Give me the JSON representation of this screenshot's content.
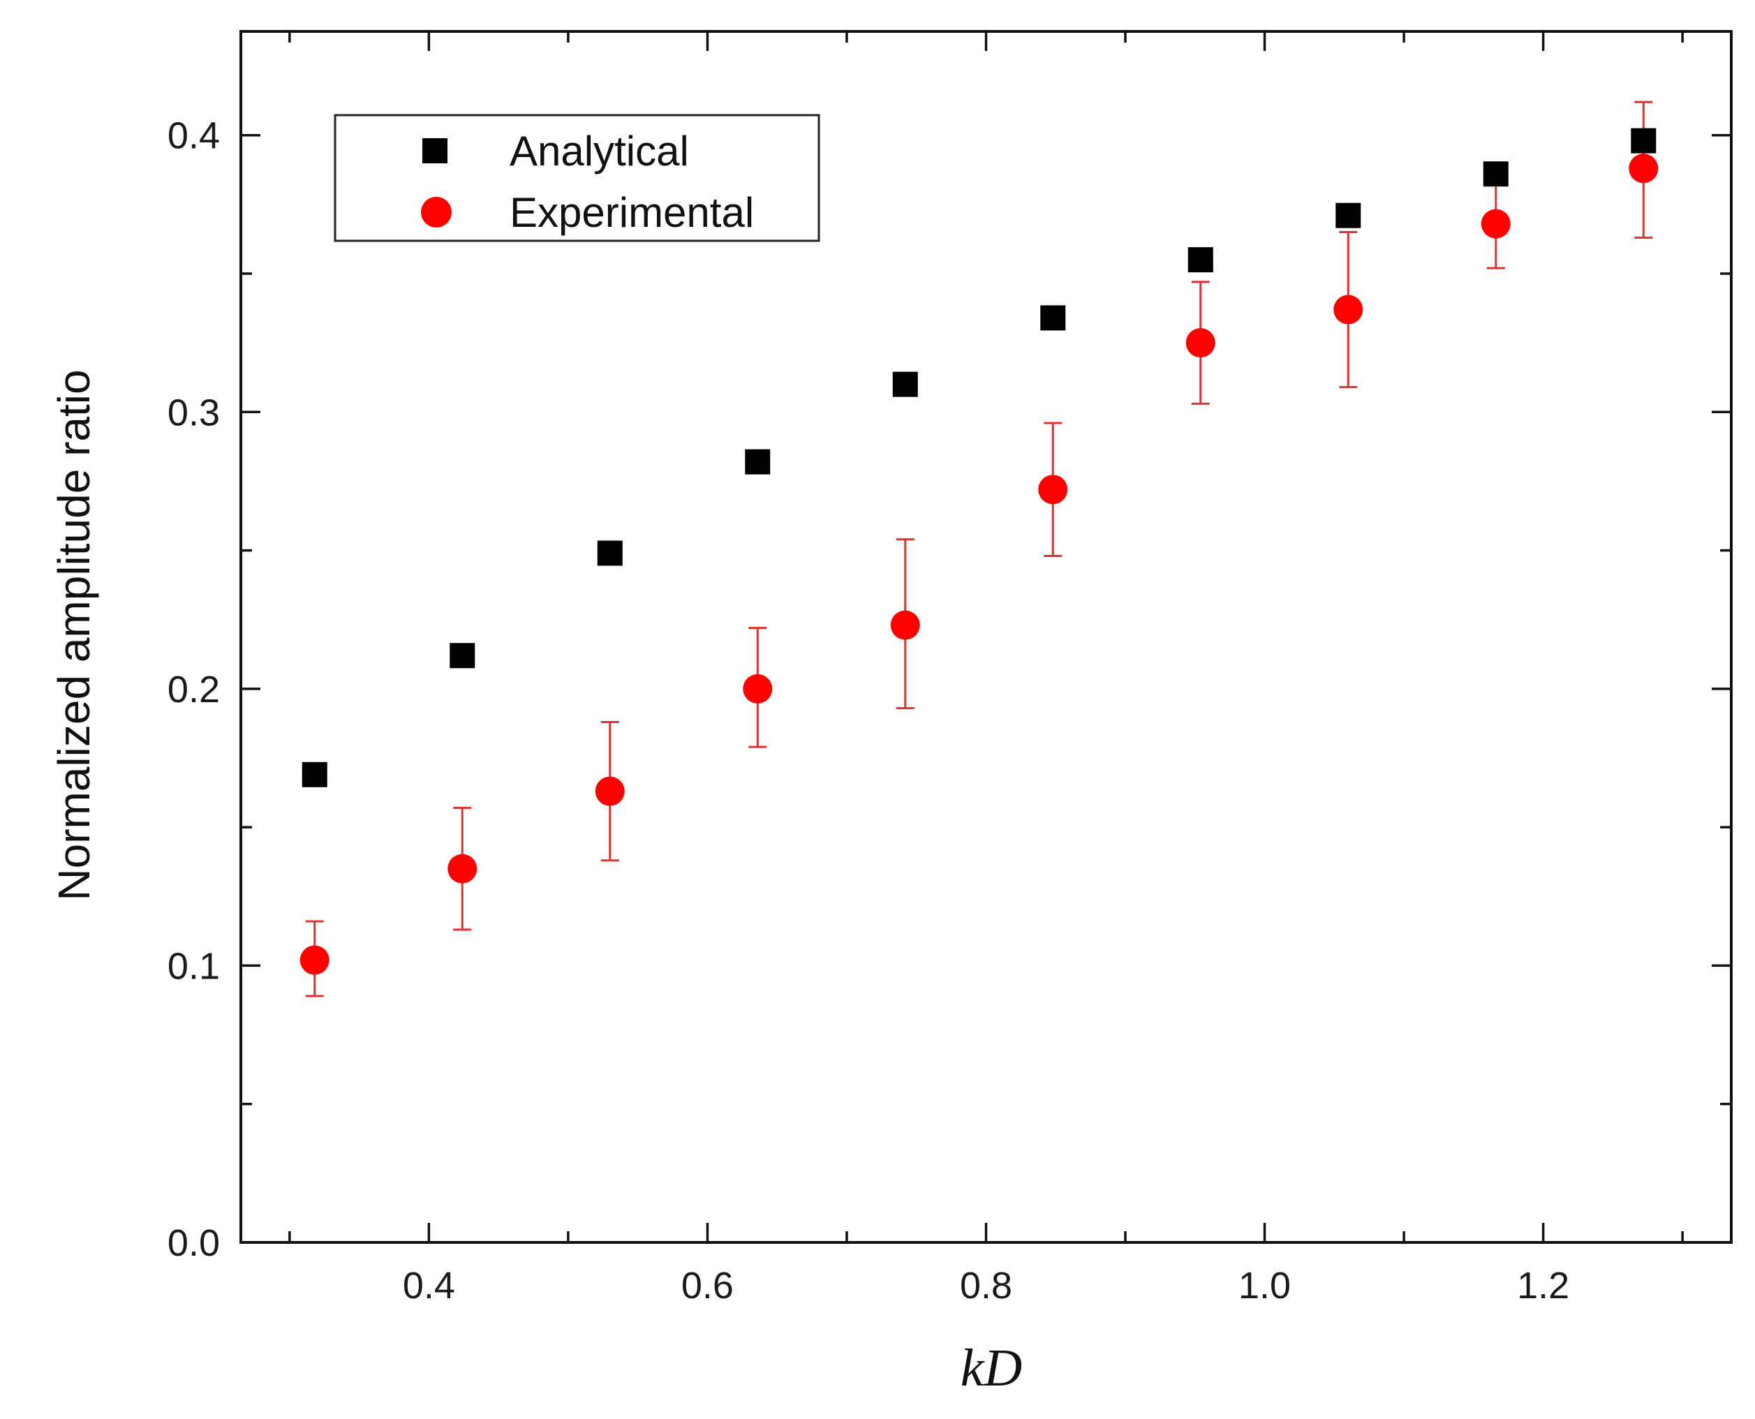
{
  "chart_data": {
    "type": "scatter",
    "title": "",
    "xlabel": "kD",
    "ylabel": "Normalized amplitude ratio",
    "xlim": [
      0.265,
      1.335
    ],
    "ylim": [
      0.0,
      0.4375
    ],
    "xticks": [
      0.4,
      0.6,
      0.8,
      1.0,
      1.2
    ],
    "xtick_labels": [
      "0.4",
      "0.6",
      "0.8",
      "1.0",
      "1.2"
    ],
    "xminor": [
      0.3,
      0.5,
      0.7,
      0.9,
      1.1,
      1.3
    ],
    "yticks": [
      0.0,
      0.1,
      0.2,
      0.3,
      0.4
    ],
    "ytick_labels": [
      "0.0",
      "0.1",
      "0.2",
      "0.3",
      "0.4"
    ],
    "yminor": [
      0.05,
      0.15,
      0.25,
      0.35
    ],
    "legend_position": "top-left",
    "grid": false,
    "series": [
      {
        "name": "Analytical",
        "marker": "square",
        "color": "#000000",
        "x": [
          0.318,
          0.424,
          0.53,
          0.636,
          0.742,
          0.848,
          0.954,
          1.06,
          1.166,
          1.272
        ],
        "y": [
          0.169,
          0.212,
          0.249,
          0.282,
          0.31,
          0.334,
          0.355,
          0.371,
          0.386,
          0.398
        ]
      },
      {
        "name": "Experimental",
        "marker": "circle",
        "color": "#ff0000",
        "error_color": "#e03030",
        "x": [
          0.318,
          0.424,
          0.53,
          0.636,
          0.742,
          0.848,
          0.954,
          1.06,
          1.166,
          1.272
        ],
        "y": [
          0.102,
          0.135,
          0.163,
          0.2,
          0.223,
          0.272,
          0.325,
          0.337,
          0.368,
          0.388
        ],
        "y_err_low": [
          0.089,
          0.113,
          0.138,
          0.179,
          0.193,
          0.248,
          0.303,
          0.309,
          0.352,
          0.363
        ],
        "y_err_high": [
          0.116,
          0.157,
          0.188,
          0.222,
          0.254,
          0.296,
          0.347,
          0.365,
          0.384,
          0.412
        ]
      }
    ]
  }
}
